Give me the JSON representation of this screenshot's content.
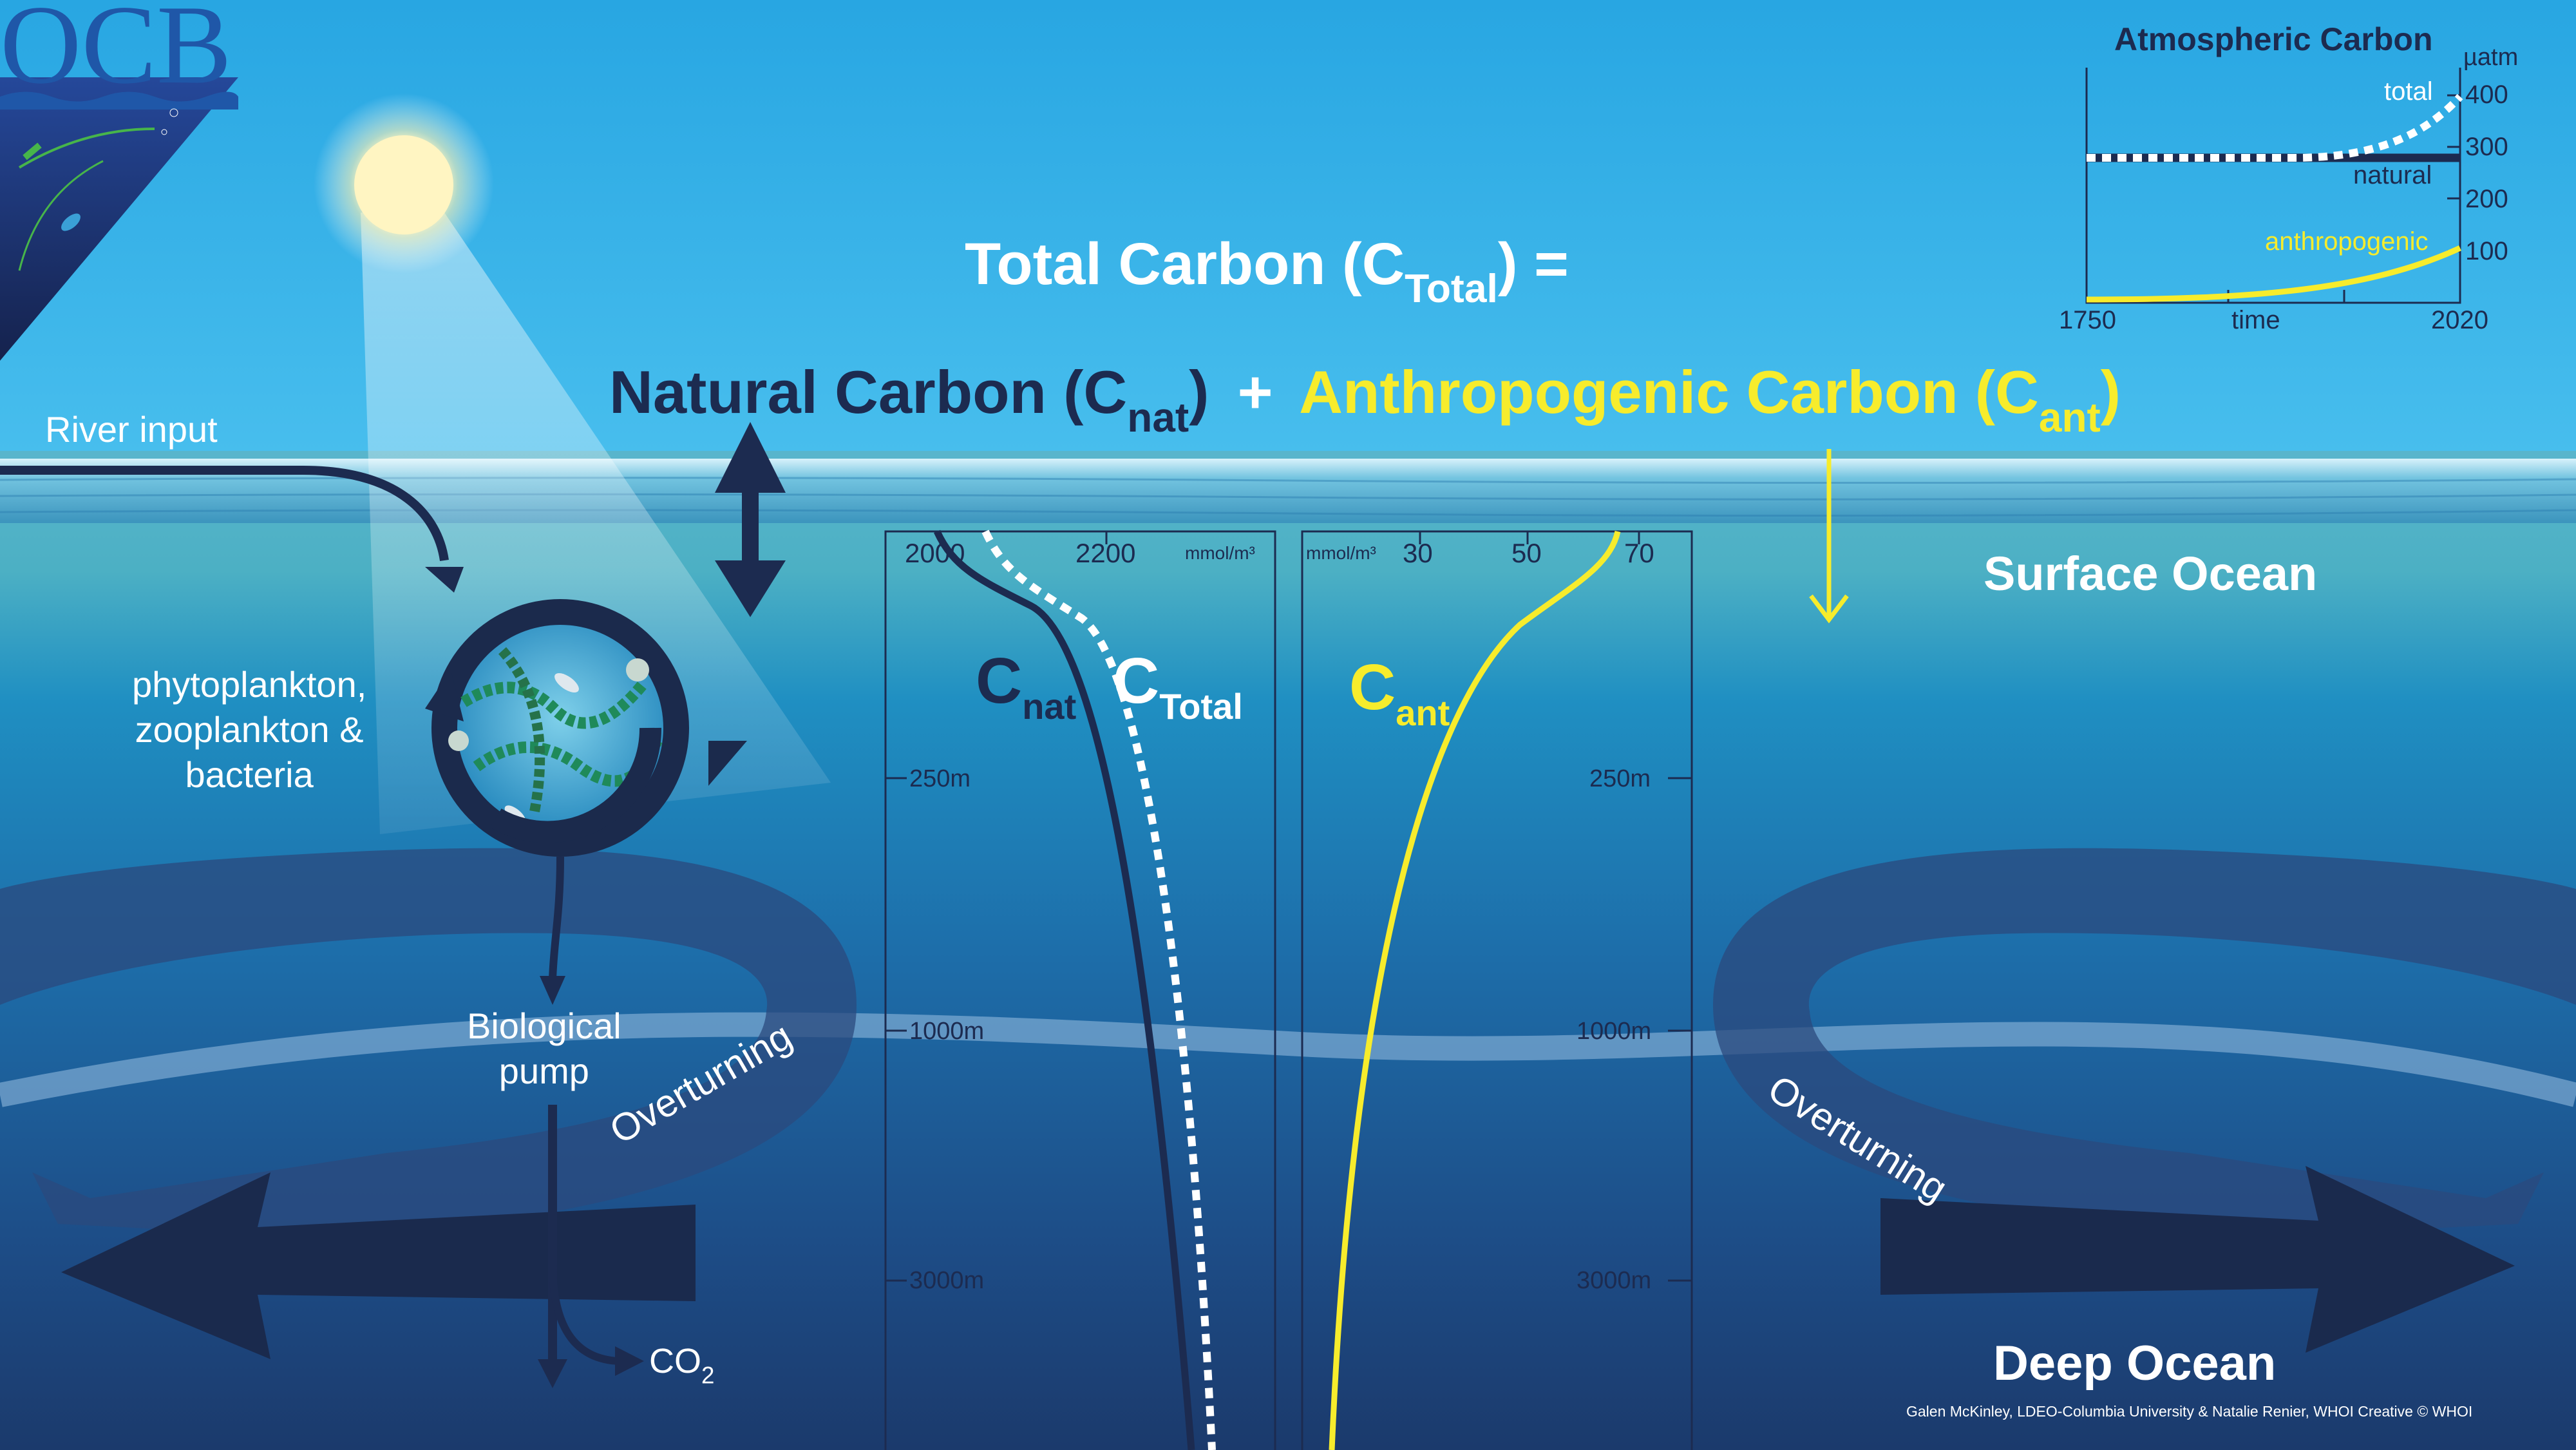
{
  "logo": {
    "text": "OCB"
  },
  "equation": {
    "total": "Total Carbon (C",
    "total_sub": "Total",
    "total_end": ") =",
    "natural": "Natural Carbon (C",
    "natural_sub": "nat",
    "natural_end": ")",
    "plus": "+",
    "anthro": "Anthropogenic Carbon (C",
    "anthro_sub": "ant",
    "anthro_end": ")"
  },
  "labels": {
    "river": "River input",
    "plankton_1": "phytoplankton,",
    "plankton_2": "zooplankton &",
    "plankton_3": "bacteria",
    "pump_1": "Biological",
    "pump_2": "pump",
    "co2": "CO",
    "co2_sub": "2",
    "overturning_left": "Overturning",
    "overturning_right": "Overturning",
    "surface": "Surface Ocean",
    "deep": "Deep Ocean",
    "credit": "Galen McKinley, LDEO-Columbia University & Natalie Renier, WHOI Creative © WHOI"
  },
  "profile_left": {
    "ticks": [
      "2000",
      "2200"
    ],
    "unit": "mmol/m³",
    "depths": [
      "250m",
      "1000m",
      "3000m"
    ],
    "c_nat": "C",
    "c_nat_sub": "nat",
    "c_total": "C",
    "c_total_sub": "Total"
  },
  "profile_right": {
    "ticks": [
      "30",
      "50",
      "70"
    ],
    "unit": "mmol/m³",
    "depths": [
      "250m",
      "1000m",
      "3000m"
    ],
    "c_ant": "C",
    "c_ant_sub": "ant"
  },
  "atmo": {
    "title": "Atmospheric Carbon",
    "unit": "µatm",
    "yticks": [
      "400",
      "300",
      "200",
      "100"
    ],
    "xticks": [
      "1750",
      "time",
      "2020"
    ],
    "series": [
      "total",
      "natural",
      "anthropogenic"
    ]
  },
  "colors": {
    "natural": "#1c2b50",
    "anthropogenic": "#f7ec2c",
    "total": "#ffffff"
  }
}
